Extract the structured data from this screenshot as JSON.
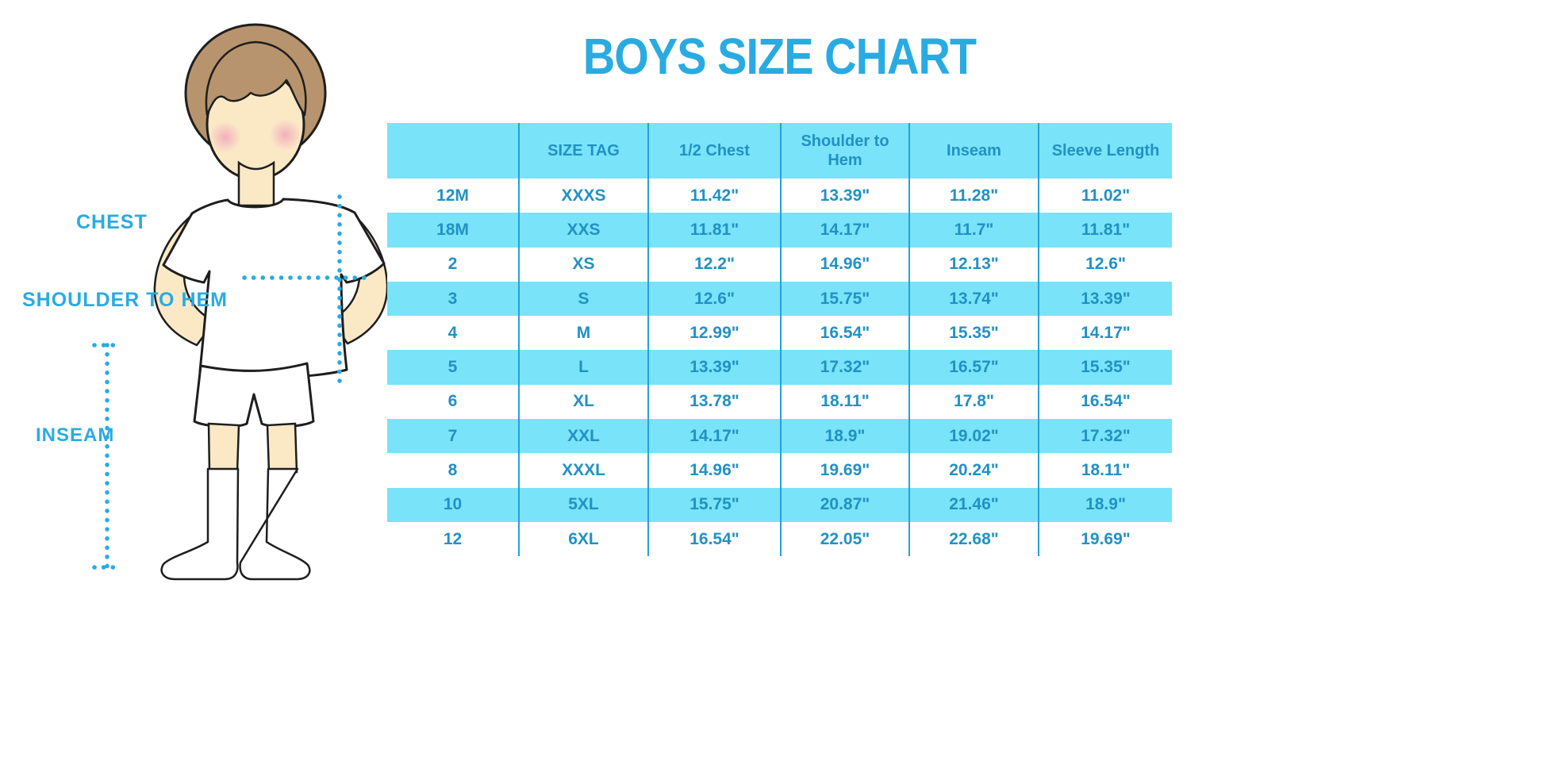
{
  "title": "BOYS SIZE CHART",
  "colors": {
    "accent": "#29ABE2",
    "table_fill": "#79E3F9",
    "table_text": "#2191C4",
    "grid_line": "#24A2D6"
  },
  "diagram": {
    "chest_label": "CHEST",
    "shoulder_label": "SHOULDER TO HEM",
    "inseam_label": "INSEAM"
  },
  "chart_data": {
    "type": "table",
    "title": "BOYS SIZE CHART",
    "columns": [
      "",
      "SIZE TAG",
      "1/2 Chest",
      "Shoulder to Hem",
      "Inseam",
      "Sleeve Length"
    ],
    "rows": [
      [
        "12M",
        "XXXS",
        "11.42\"",
        "13.39\"",
        "11.28\"",
        "11.02\""
      ],
      [
        "18M",
        "XXS",
        "11.81\"",
        "14.17\"",
        "11.7\"",
        "11.81\""
      ],
      [
        "2",
        "XS",
        "12.2\"",
        "14.96\"",
        "12.13\"",
        "12.6\""
      ],
      [
        "3",
        "S",
        "12.6\"",
        "15.75\"",
        "13.74\"",
        "13.39\""
      ],
      [
        "4",
        "M",
        "12.99\"",
        "16.54\"",
        "15.35\"",
        "14.17\""
      ],
      [
        "5",
        "L",
        "13.39\"",
        "17.32\"",
        "16.57\"",
        "15.35\""
      ],
      [
        "6",
        "XL",
        "13.78\"",
        "18.11\"",
        "17.8\"",
        "16.54\""
      ],
      [
        "7",
        "XXL",
        "14.17\"",
        "18.9\"",
        "19.02\"",
        "17.32\""
      ],
      [
        "8",
        "XXXL",
        "14.96\"",
        "19.69\"",
        "20.24\"",
        "18.11\""
      ],
      [
        "10",
        "5XL",
        "15.75\"",
        "20.87\"",
        "21.46\"",
        "18.9\""
      ],
      [
        "12",
        "6XL",
        "16.54\"",
        "22.05\"",
        "22.68\"",
        "19.69\""
      ]
    ],
    "row_striping": "white / light-cyan alternating, header light-cyan",
    "legend_position": "none",
    "grid": "vertical column dividers only"
  }
}
